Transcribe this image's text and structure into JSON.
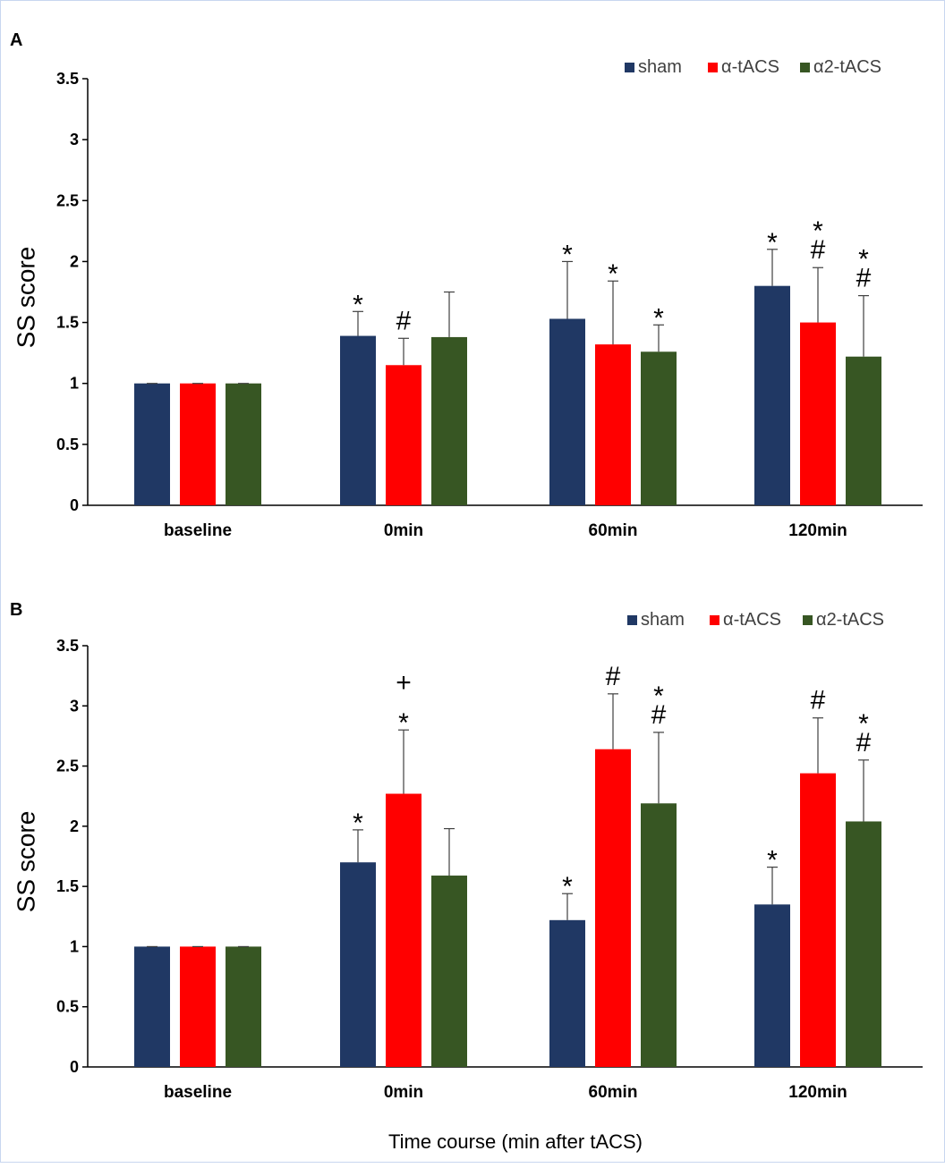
{
  "figure": {
    "xlabel": "Time course (min after tACS)"
  },
  "colors": {
    "sham": "#203864",
    "alpha": "#ff0000",
    "alpha2": "#375623",
    "axis": "#000000"
  },
  "chart_data": [
    {
      "panel": "A",
      "type": "bar",
      "ylabel": "SS score",
      "ylim": [
        0,
        3.5
      ],
      "yticks": [
        "0",
        "0.5",
        "1",
        "1.5",
        "2",
        "2.5",
        "3",
        "3.5"
      ],
      "categories": [
        "baseline",
        "0min",
        "60min",
        "120min"
      ],
      "legend": [
        "sham",
        "α-tACS",
        "α2-tACS"
      ],
      "series": [
        {
          "name": "sham",
          "values": [
            1.0,
            1.39,
            1.53,
            1.8
          ],
          "errors": [
            0,
            0.2,
            0.47,
            0.3
          ],
          "sig": [
            "",
            "*",
            "*",
            "*"
          ]
        },
        {
          "name": "α-tACS",
          "values": [
            1.0,
            1.15,
            1.32,
            1.5
          ],
          "errors": [
            0,
            0.22,
            0.52,
            0.45
          ],
          "sig": [
            "",
            "#",
            "*",
            "*\n#"
          ]
        },
        {
          "name": "α2-tACS",
          "values": [
            1.0,
            1.38,
            1.26,
            1.22
          ],
          "errors": [
            0,
            0.37,
            0.22,
            0.5
          ],
          "sig": [
            "",
            "",
            "*",
            "*\n#"
          ]
        }
      ]
    },
    {
      "panel": "B",
      "type": "bar",
      "ylabel": "SS score",
      "ylim": [
        0,
        3.5
      ],
      "yticks": [
        "0",
        "0.5",
        "1",
        "1.5",
        "2",
        "2.5",
        "3",
        "3.5"
      ],
      "categories": [
        "baseline",
        "0min",
        "60min",
        "120min"
      ],
      "legend": [
        "sham",
        "α-tACS",
        "α2-tACS"
      ],
      "series": [
        {
          "name": "sham",
          "values": [
            1.0,
            1.7,
            1.22,
            1.35
          ],
          "errors": [
            0,
            0.27,
            0.22,
            0.31
          ],
          "sig": [
            "",
            "*",
            "*",
            "*"
          ]
        },
        {
          "name": "α-tACS",
          "values": [
            1.0,
            2.27,
            2.64,
            2.44
          ],
          "errors": [
            0,
            0.53,
            0.46,
            0.46
          ],
          "sig": [
            "",
            "+\n*",
            "#",
            "#"
          ]
        },
        {
          "name": "α2-tACS",
          "values": [
            1.0,
            1.59,
            2.19,
            2.04
          ],
          "errors": [
            0,
            0.39,
            0.59,
            0.51
          ],
          "sig": [
            "",
            "",
            "*\n#",
            "*\n#"
          ]
        }
      ]
    }
  ]
}
